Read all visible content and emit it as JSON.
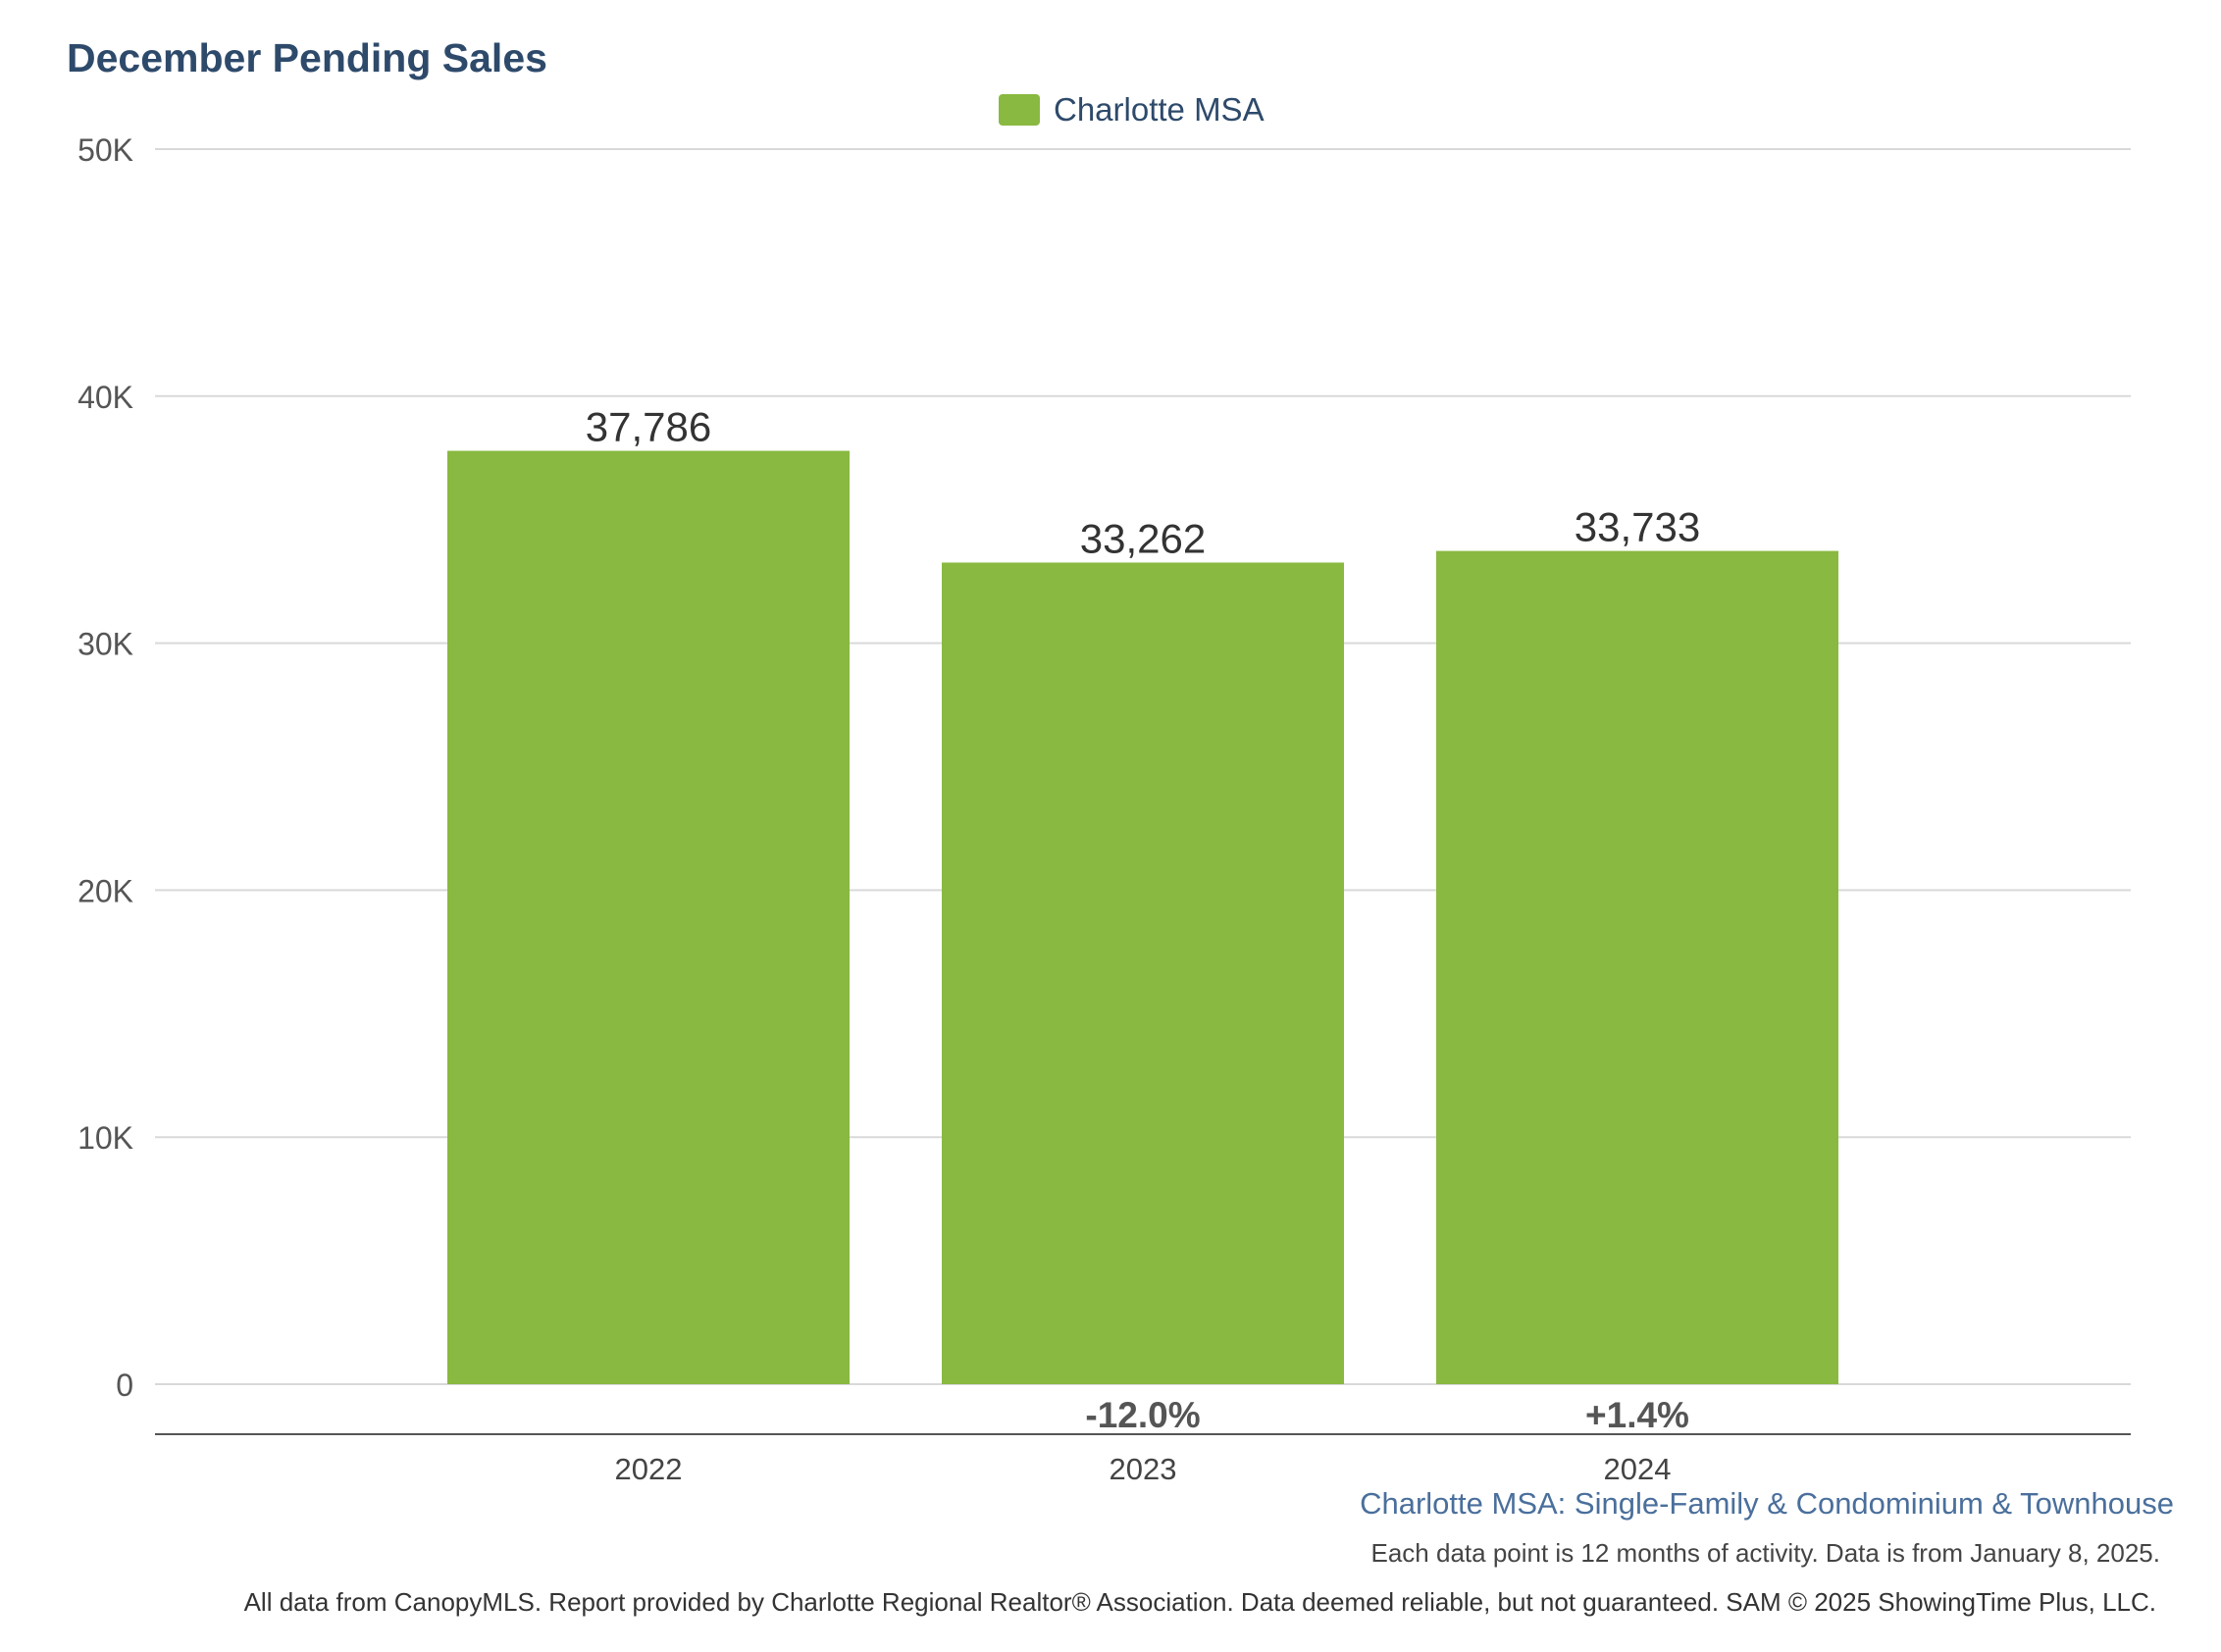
{
  "colors": {
    "bar": "#89b941",
    "title": "#2e4a6b",
    "grid": "#d9d9d9",
    "axis_line": "#555555",
    "subtitle": "#4a6f9c"
  },
  "chart_data": {
    "type": "bar",
    "title": "December Pending Sales",
    "xlabel": "",
    "ylabel": "",
    "categories": [
      "2022",
      "2023",
      "2024"
    ],
    "series": [
      {
        "name": "Charlotte MSA",
        "values": [
          37786,
          33262,
          33733
        ],
        "value_labels": [
          "37,786",
          "33,262",
          "33,733"
        ],
        "change_labels": [
          "",
          "-12.0%",
          "+1.4%"
        ]
      }
    ],
    "ylim": [
      0,
      50000
    ],
    "yticks": [
      0,
      10000,
      20000,
      30000,
      40000,
      50000
    ],
    "ytick_labels": [
      "0",
      "10K",
      "20K",
      "30K",
      "40K",
      "50K"
    ],
    "grid": true,
    "legend_position": "top-center"
  },
  "subtitle": "Charlotte MSA: Single-Family & Condominium & Townhouse",
  "note": "Each data point is 12 months of activity. Data is from January 8, 2025.",
  "footer": "All data from CanopyMLS. Report provided by Charlotte Regional Realtor® Association. Data deemed reliable, but not guaranteed. SAM © 2025 ShowingTime Plus, LLC."
}
